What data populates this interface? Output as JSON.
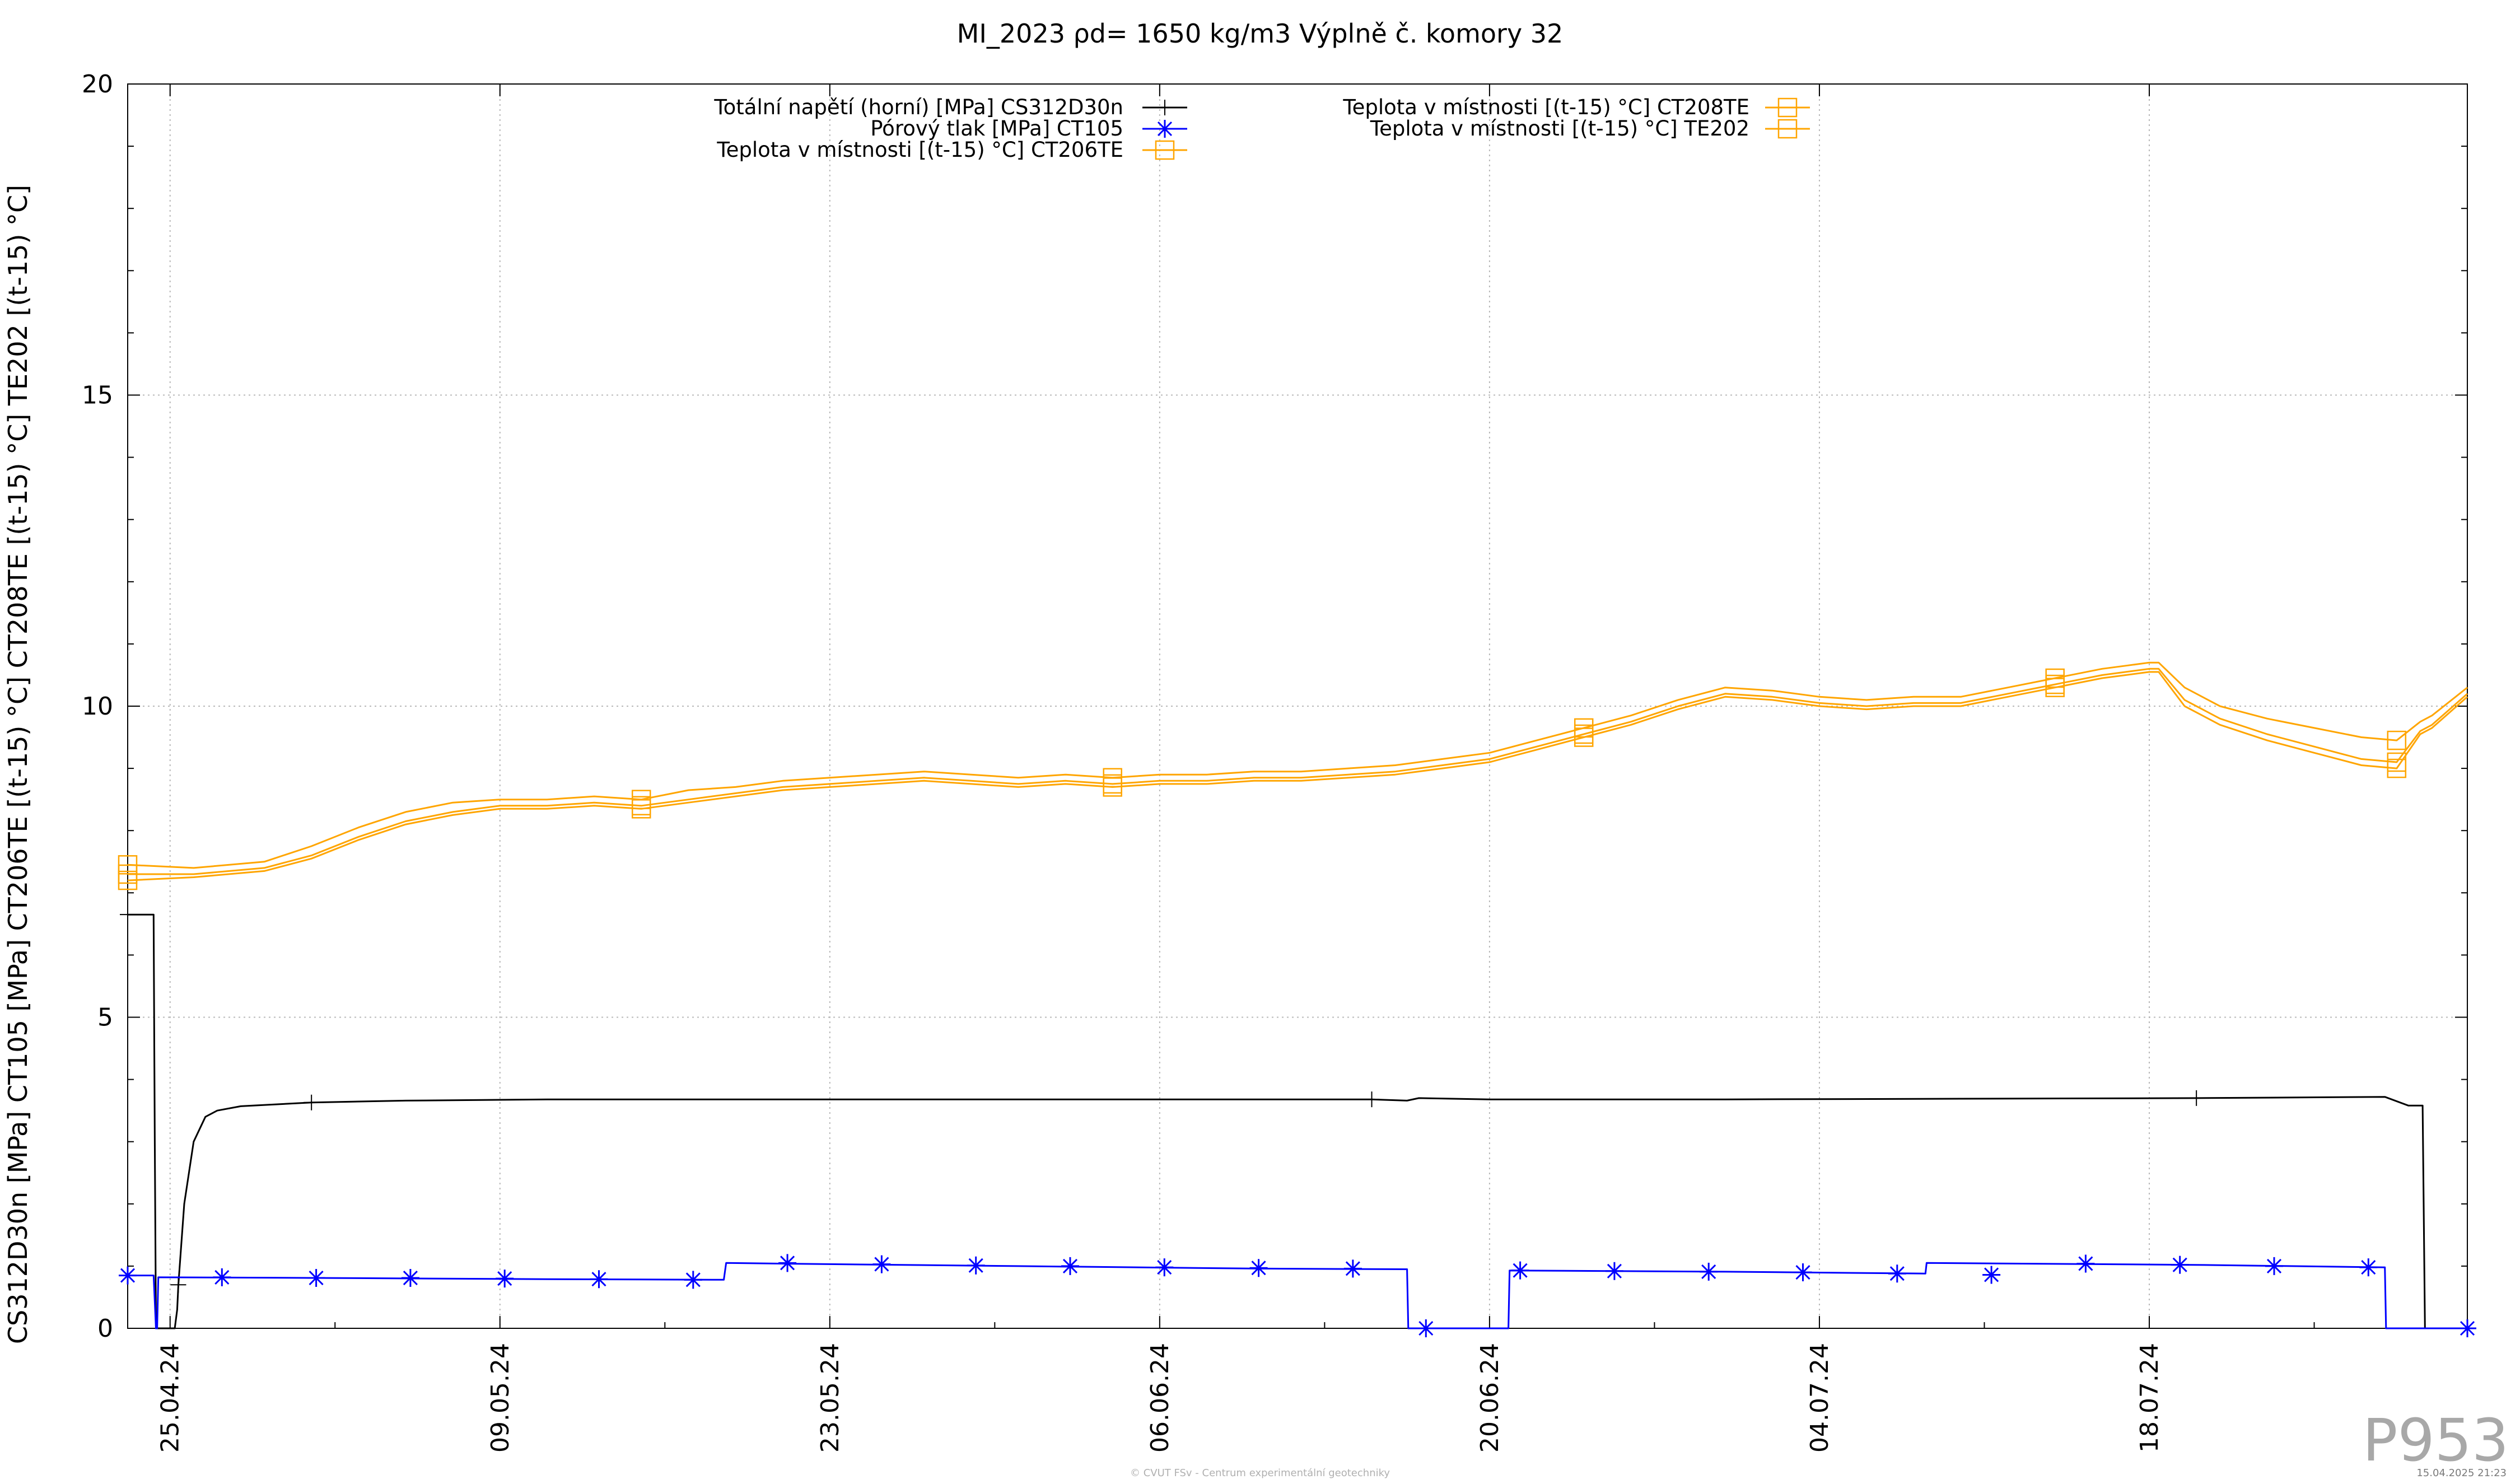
{
  "chart_data": {
    "type": "line",
    "title": "MI_2023 ρd= 1650 kg/m3 Výplně č. komory 32",
    "ylabel": "CS312D30n [MPa] CT105 [MPa] CT206TE [(t-15) °C] CT208TE [(t-15) °C] TE202 [(t-15) °C]",
    "xlabel": "",
    "ylim": [
      0,
      20
    ],
    "yticks": [
      "0",
      "5",
      "10",
      "15",
      "20"
    ],
    "xticks": [
      "25.04.24",
      "09.05.24",
      "23.05.24",
      "06.06.24",
      "20.06.24",
      "04.07.24",
      "18.07.24"
    ],
    "xtick_days": [
      4,
      18,
      32,
      46,
      60,
      74,
      88
    ],
    "xlim_days": [
      2.2,
      101.5
    ],
    "grid": true,
    "legend_placement": "top",
    "series": [
      {
        "name": "Totální napětí (horní) [MPa] CS312D30n",
        "color": "#000000",
        "marker": "plus",
        "x": [
          2.2,
          3.3,
          3.35,
          3.4,
          4.2,
          4.3,
          4.35,
          4.6,
          5.0,
          5.5,
          6.0,
          7.0,
          10.0,
          14.0,
          20.0,
          30.0,
          40.0,
          50.0,
          55.0,
          56.5,
          57.0,
          60.0,
          70.0,
          80.0,
          90.0,
          98.0,
          99.0,
          99.6,
          99.7,
          101.5
        ],
        "values": [
          6.65,
          6.65,
          3.0,
          0.0,
          0.0,
          0.3,
          0.7,
          2.0,
          3.0,
          3.4,
          3.5,
          3.57,
          3.63,
          3.66,
          3.68,
          3.68,
          3.68,
          3.68,
          3.68,
          3.66,
          3.7,
          3.68,
          3.68,
          3.69,
          3.7,
          3.72,
          3.58,
          3.58,
          0.0,
          0.0
        ]
      },
      {
        "name": "Pórový tlak [MPa] CT105",
        "color": "#0000ff",
        "marker": "asterisk",
        "x": [
          2.2,
          3.3,
          3.4,
          3.45,
          3.5,
          10.0,
          20.0,
          27.5,
          27.6,
          30.0,
          40.0,
          50.0,
          56.5,
          56.55,
          60.0,
          60.8,
          60.85,
          70.0,
          78.5,
          78.55,
          90.0,
          98.0,
          98.05,
          101.5
        ],
        "values": [
          0.85,
          0.85,
          0.0,
          0.0,
          0.82,
          0.81,
          0.79,
          0.78,
          1.05,
          1.04,
          1.0,
          0.96,
          0.95,
          0.0,
          0.0,
          0.0,
          0.93,
          0.91,
          0.88,
          1.05,
          1.02,
          0.98,
          0.0,
          0.0
        ],
        "marker_x": [
          2.2,
          6.2,
          10.2,
          14.2,
          18.2,
          22.2,
          26.2,
          30.2,
          34.2,
          38.2,
          42.2,
          46.2,
          50.2,
          54.2,
          57.3,
          61.3,
          65.3,
          69.3,
          73.3,
          77.3,
          81.3,
          85.3,
          89.3,
          93.3,
          97.3,
          101.5
        ],
        "marker_values": [
          0.85,
          0.82,
          0.81,
          0.81,
          0.8,
          0.79,
          0.78,
          1.05,
          1.03,
          1.01,
          1.0,
          0.98,
          0.97,
          0.96,
          0.0,
          0.93,
          0.92,
          0.91,
          0.9,
          0.88,
          0.86,
          1.04,
          1.02,
          1.0,
          0.98,
          0.0
        ]
      },
      {
        "name": "Teplota v místnosti [(t-15) °C] CT206TE",
        "color": "#ffa500",
        "marker": "square",
        "x": [
          2.2,
          5.0,
          8.0,
          10.0,
          12.0,
          14.0,
          16.0,
          18.0,
          20.0,
          22.0,
          24.0,
          26.0,
          28.0,
          30.0,
          32.0,
          34.0,
          36.0,
          38.0,
          40.0,
          42.0,
          44.0,
          46.0,
          48.0,
          50.0,
          52.0,
          54.0,
          56.0,
          58.0,
          60.0,
          62.0,
          64.0,
          66.0,
          68.0,
          70.0,
          72.0,
          74.0,
          76.0,
          78.0,
          80.0,
          82.0,
          84.0,
          86.0,
          87.0,
          88.0,
          88.4,
          89.5,
          91.0,
          93.0,
          95.0,
          97.0,
          98.5,
          99.5,
          100.0,
          101.5
        ],
        "values": [
          7.3,
          7.3,
          7.4,
          7.6,
          7.9,
          8.15,
          8.3,
          8.4,
          8.4,
          8.45,
          8.4,
          8.5,
          8.6,
          8.7,
          8.75,
          8.8,
          8.85,
          8.8,
          8.75,
          8.8,
          8.75,
          8.8,
          8.8,
          8.85,
          8.85,
          8.9,
          8.95,
          9.05,
          9.15,
          9.35,
          9.55,
          9.75,
          10.0,
          10.2,
          10.15,
          10.05,
          10.0,
          10.05,
          10.05,
          10.2,
          10.35,
          10.5,
          10.55,
          10.6,
          10.6,
          10.1,
          9.8,
          9.55,
          9.35,
          9.15,
          9.1,
          9.6,
          9.7,
          10.2
        ]
      },
      {
        "name": "Teplota v místnosti [(t-15) °C] CT208TE",
        "color": "#ffa500",
        "marker": "square",
        "x": [
          2.2,
          5.0,
          8.0,
          10.0,
          12.0,
          14.0,
          16.0,
          18.0,
          20.0,
          22.0,
          24.0,
          26.0,
          28.0,
          30.0,
          32.0,
          34.0,
          36.0,
          38.0,
          40.0,
          42.0,
          44.0,
          46.0,
          48.0,
          50.0,
          52.0,
          54.0,
          56.0,
          58.0,
          60.0,
          62.0,
          64.0,
          66.0,
          68.0,
          70.0,
          72.0,
          74.0,
          76.0,
          78.0,
          80.0,
          82.0,
          84.0,
          86.0,
          87.0,
          88.0,
          88.4,
          89.5,
          91.0,
          93.0,
          95.0,
          97.0,
          98.5,
          99.5,
          100.0,
          101.5
        ],
        "values": [
          7.45,
          7.4,
          7.5,
          7.75,
          8.05,
          8.3,
          8.45,
          8.5,
          8.5,
          8.55,
          8.5,
          8.65,
          8.7,
          8.8,
          8.85,
          8.9,
          8.95,
          8.9,
          8.85,
          8.9,
          8.85,
          8.9,
          8.9,
          8.95,
          8.95,
          9.0,
          9.05,
          9.15,
          9.25,
          9.45,
          9.65,
          9.85,
          10.1,
          10.3,
          10.25,
          10.15,
          10.1,
          10.15,
          10.15,
          10.3,
          10.45,
          10.6,
          10.65,
          10.7,
          10.7,
          10.3,
          10.0,
          9.8,
          9.65,
          9.5,
          9.45,
          9.75,
          9.85,
          10.3
        ]
      },
      {
        "name": "Teplota v místnosti [(t-15) °C] TE202",
        "color": "#ffa500",
        "marker": "square",
        "x": [
          2.2,
          5.0,
          8.0,
          10.0,
          12.0,
          14.0,
          16.0,
          18.0,
          20.0,
          22.0,
          24.0,
          26.0,
          28.0,
          30.0,
          32.0,
          34.0,
          36.0,
          38.0,
          40.0,
          42.0,
          44.0,
          46.0,
          48.0,
          50.0,
          52.0,
          54.0,
          56.0,
          58.0,
          60.0,
          62.0,
          64.0,
          66.0,
          68.0,
          70.0,
          72.0,
          74.0,
          76.0,
          78.0,
          80.0,
          82.0,
          84.0,
          86.0,
          87.0,
          88.0,
          88.4,
          89.5,
          91.0,
          93.0,
          95.0,
          97.0,
          98.5,
          99.5,
          100.0,
          101.5
        ],
        "values": [
          7.2,
          7.25,
          7.35,
          7.55,
          7.85,
          8.1,
          8.25,
          8.35,
          8.35,
          8.4,
          8.35,
          8.45,
          8.55,
          8.65,
          8.7,
          8.75,
          8.8,
          8.75,
          8.7,
          8.75,
          8.7,
          8.75,
          8.75,
          8.8,
          8.8,
          8.85,
          8.9,
          9.0,
          9.1,
          9.3,
          9.5,
          9.7,
          9.95,
          10.15,
          10.1,
          10.0,
          9.95,
          10.0,
          10.0,
          10.15,
          10.3,
          10.45,
          10.5,
          10.55,
          10.55,
          10.0,
          9.7,
          9.45,
          9.25,
          9.05,
          9.0,
          9.55,
          9.65,
          10.15
        ]
      }
    ]
  },
  "watermark": "P953",
  "footer": "© CVUT FSv - Centrum experimentální geotechniky",
  "timestamp": "15.04.2025 21:23"
}
